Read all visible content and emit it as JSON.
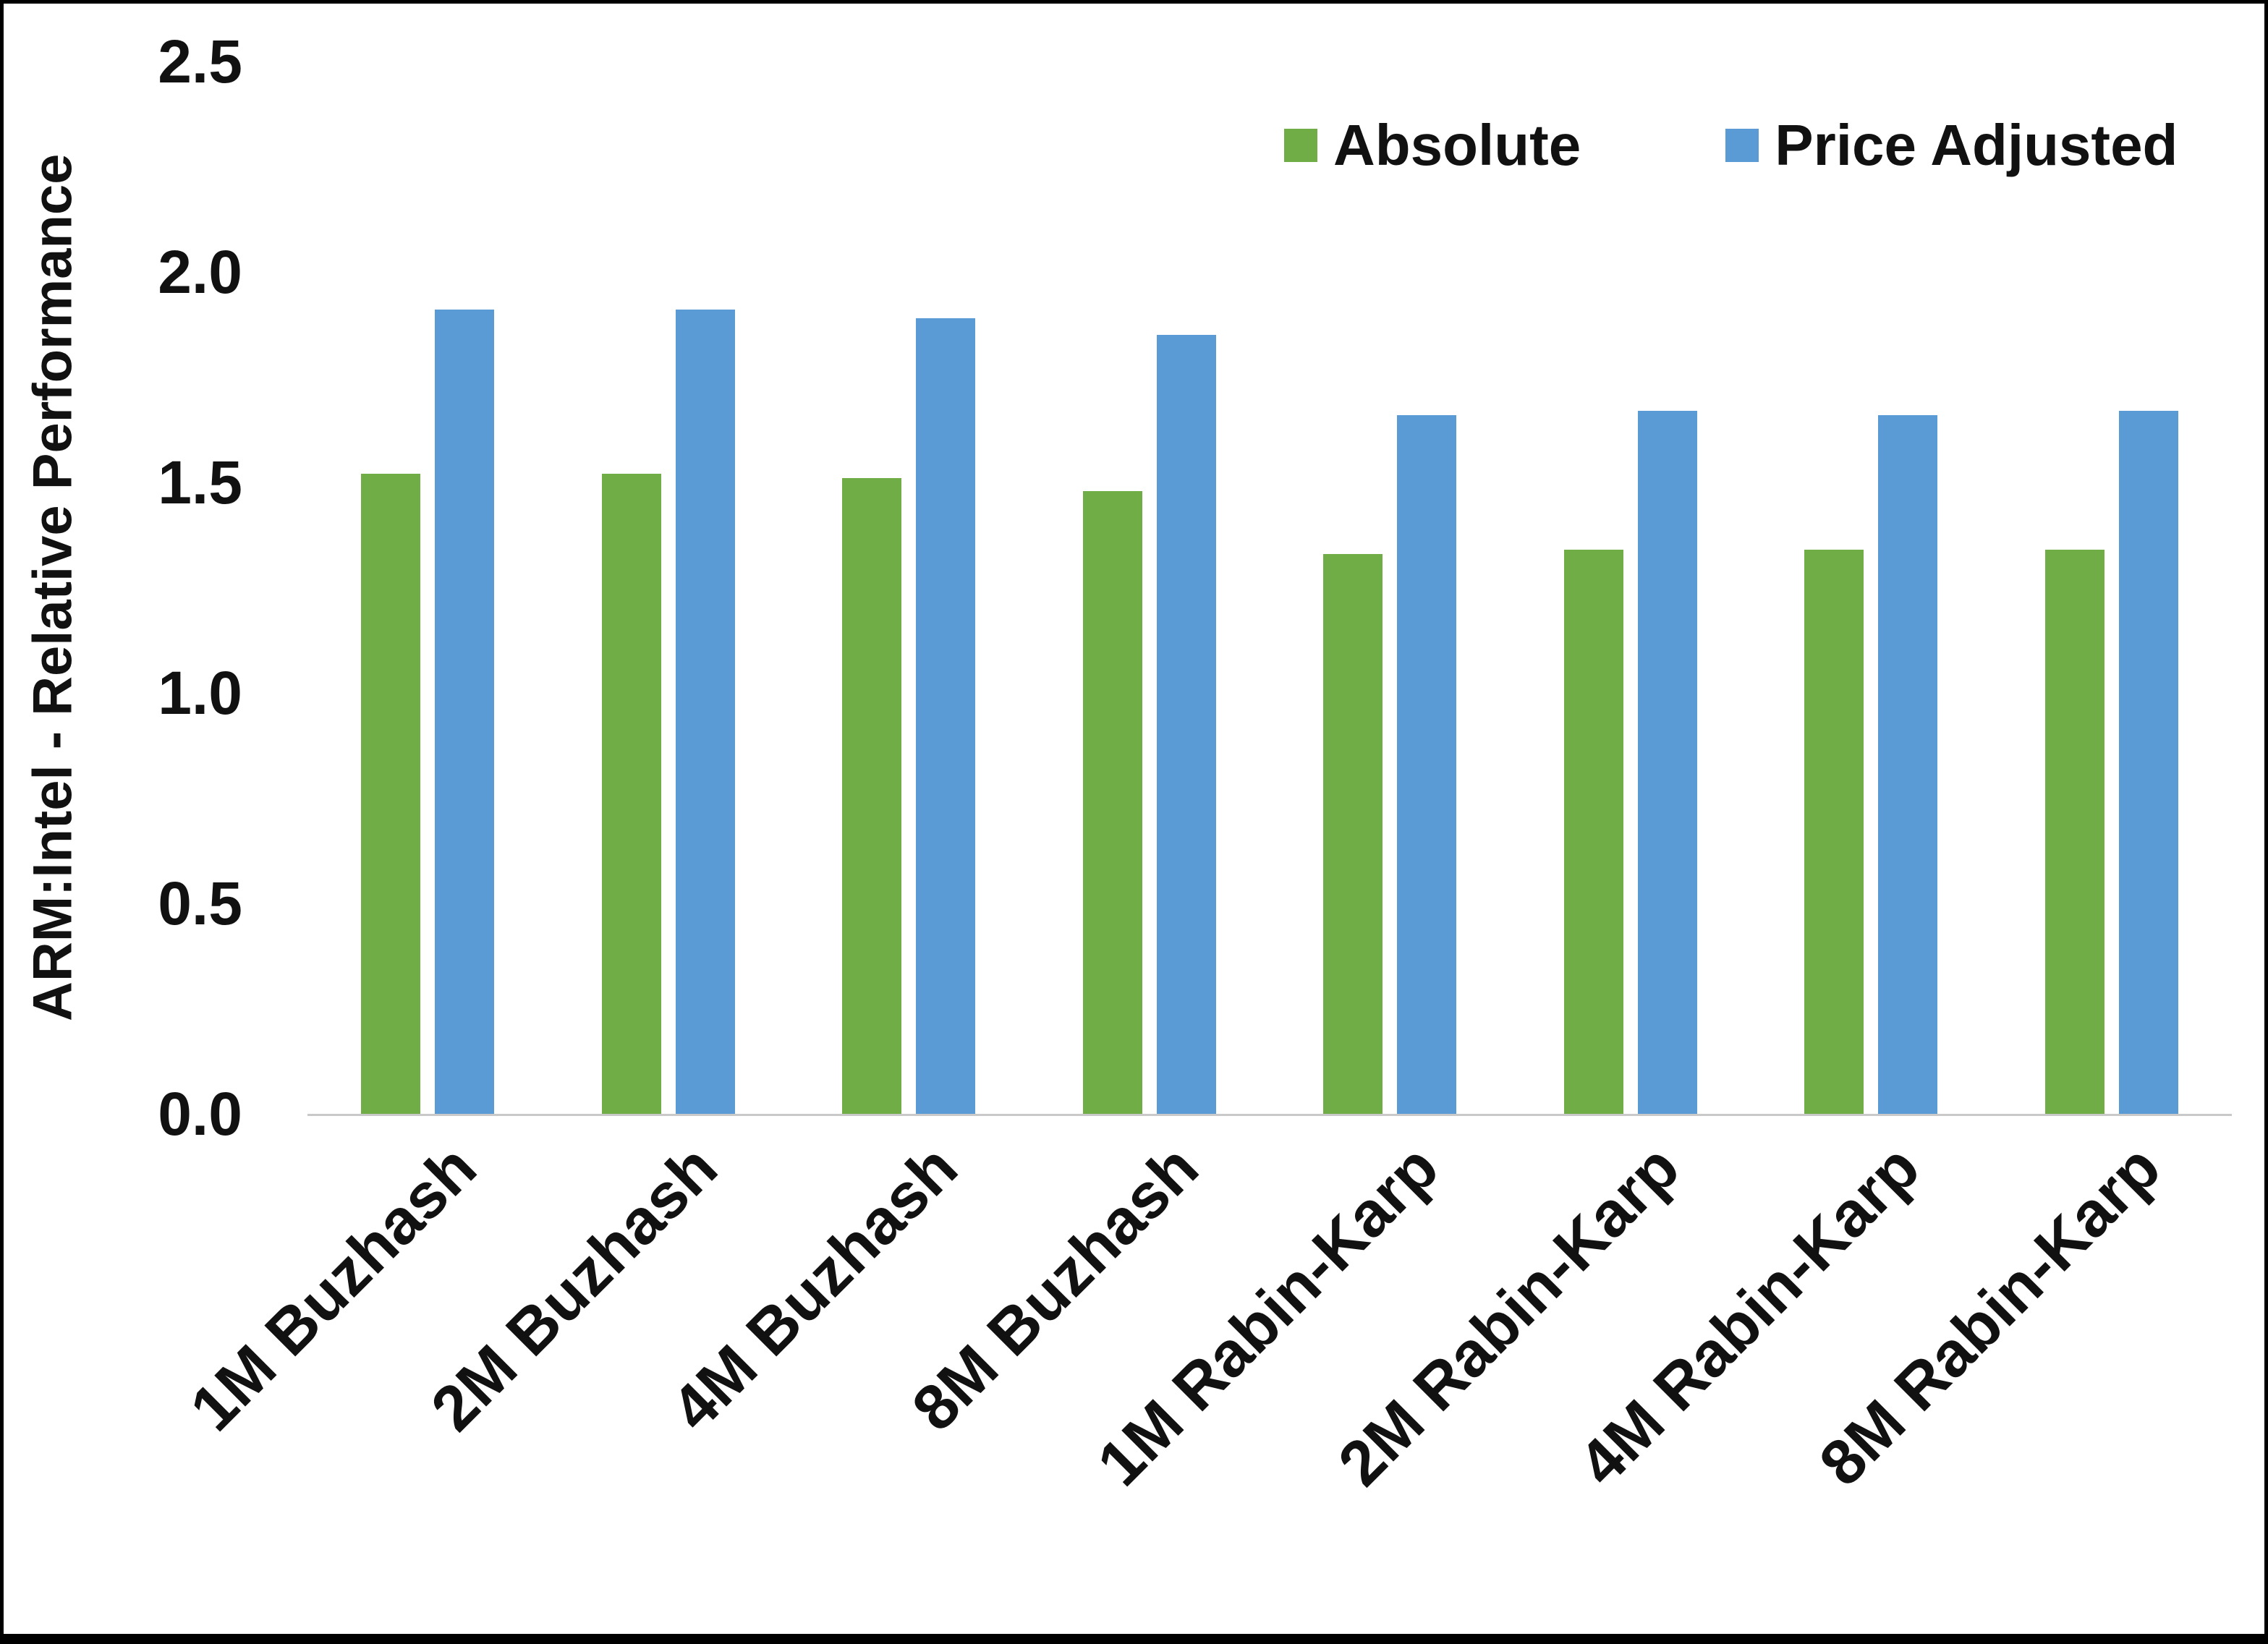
{
  "chart_data": {
    "type": "bar",
    "title": "",
    "xlabel": "",
    "ylabel": "ARM:Intel - Relative Performance",
    "ylim": [
      0,
      2.5
    ],
    "yticks": [
      0.0,
      0.5,
      1.0,
      1.5,
      2.0,
      2.5
    ],
    "ytick_labels": [
      "0.0",
      "0.5",
      "1.0",
      "1.5",
      "2.0",
      "2.5"
    ],
    "grid": false,
    "legend_position": "top-right",
    "categories": [
      "1M Buzhash",
      "2M Buzhash",
      "4M Buzhash",
      "8M Buzhash",
      "1M Rabin-Karp",
      "2M Rabin-Karp",
      "4M Rabin-Karp",
      "8M Rabin-Karp"
    ],
    "series": [
      {
        "name": "Absolute",
        "color": "#70AD47",
        "values": [
          1.52,
          1.52,
          1.51,
          1.48,
          1.33,
          1.34,
          1.34,
          1.34
        ]
      },
      {
        "name": "Price Adjusted",
        "color": "#5B9BD5",
        "values": [
          1.91,
          1.91,
          1.89,
          1.85,
          1.66,
          1.67,
          1.66,
          1.67
        ]
      }
    ]
  }
}
